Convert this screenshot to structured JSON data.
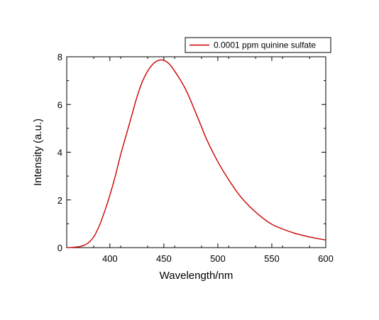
{
  "chart_data": {
    "type": "line",
    "xlabel": "Wavelength/nm",
    "ylabel": "Intensity (a.u.)",
    "xlim": [
      360,
      600
    ],
    "ylim": [
      0,
      8
    ],
    "xticks": [
      400,
      450,
      500,
      550,
      600
    ],
    "yticks": [
      0,
      2,
      4,
      6,
      8
    ],
    "grid": false,
    "legend_position": "top-right",
    "series": [
      {
        "name": "0.0001 ppm quinine sulfate",
        "color": "#cc0000",
        "x": [
          360,
          365,
          370,
          375,
          380,
          385,
          390,
          395,
          400,
          405,
          410,
          415,
          420,
          425,
          430,
          435,
          440,
          445,
          450,
          455,
          460,
          465,
          470,
          475,
          480,
          485,
          490,
          500,
          510,
          520,
          530,
          540,
          550,
          560,
          570,
          580,
          590,
          600
        ],
        "y": [
          0.0,
          0.01,
          0.03,
          0.08,
          0.2,
          0.45,
          0.9,
          1.5,
          2.2,
          3.0,
          3.9,
          4.7,
          5.5,
          6.3,
          6.95,
          7.4,
          7.7,
          7.85,
          7.85,
          7.7,
          7.4,
          7.05,
          6.65,
          6.15,
          5.6,
          5.05,
          4.5,
          3.6,
          2.85,
          2.2,
          1.7,
          1.3,
          0.98,
          0.78,
          0.62,
          0.5,
          0.4,
          0.32
        ]
      }
    ]
  }
}
